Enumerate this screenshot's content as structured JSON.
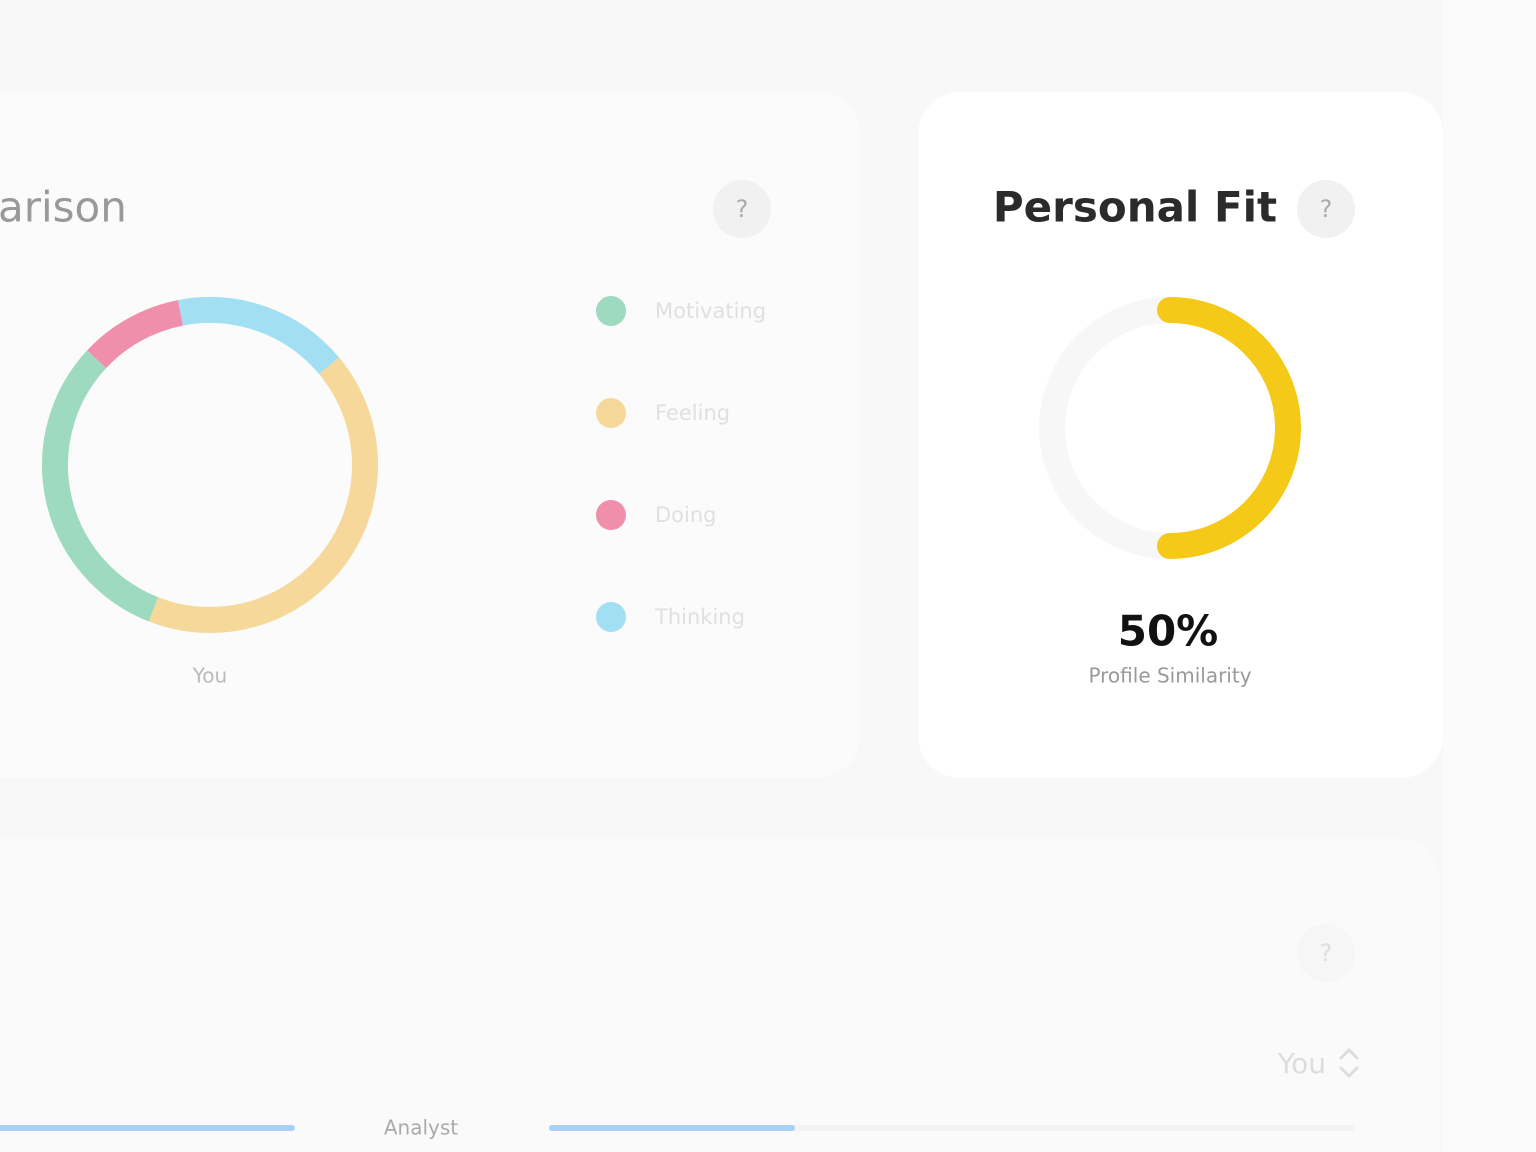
{
  "chart_data": [
    {
      "type": "donut",
      "title": "arison",
      "categories": [
        "Motivating",
        "Feeling",
        "Doing",
        "Thinking"
      ],
      "values": [
        31,
        42,
        10,
        17
      ],
      "colors": [
        "#9ddabf",
        "#f5d89a",
        "#ef8fab",
        "#a3dff2"
      ],
      "caption": "You"
    },
    {
      "type": "gauge",
      "title": "Personal Fit",
      "values": [
        50
      ],
      "value_labels": [
        "50%"
      ],
      "ylim": [
        0,
        100
      ],
      "color": "#f5c918",
      "caption": "Profile Similarity"
    }
  ],
  "help_buttons": [
    "?",
    "?",
    "?"
  ],
  "bottom_panel": {
    "selector": "You",
    "row_label": "Analyst",
    "bar": {
      "value": 30,
      "range": [
        0,
        100
      ],
      "color": "#a9d0f5"
    }
  }
}
